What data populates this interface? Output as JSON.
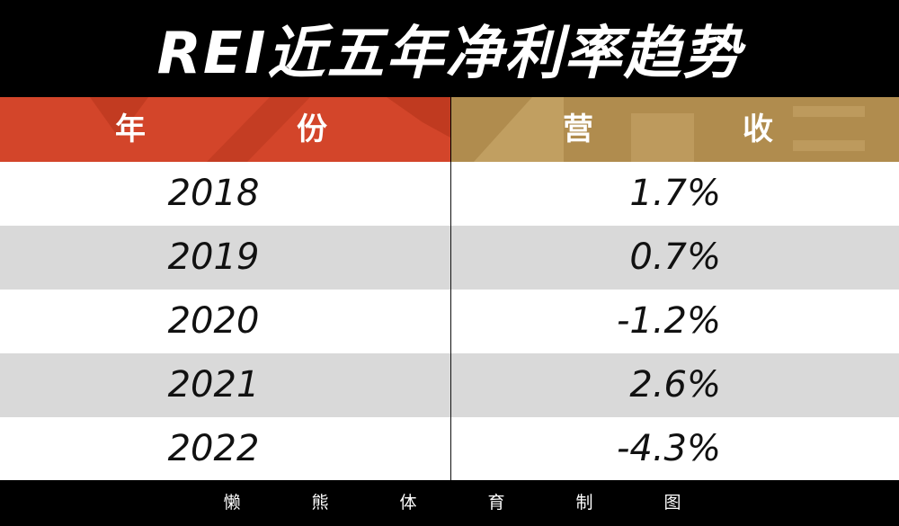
{
  "title": "REI近五年净利率趋势",
  "chart_data": {
    "type": "table",
    "title": "REI近五年净利率趋势",
    "headers": {
      "year": [
        "年",
        "份"
      ],
      "value": [
        "营",
        "收"
      ]
    },
    "rows": [
      {
        "year": "2018",
        "value": "1.7%"
      },
      {
        "year": "2019",
        "value": "0.7%"
      },
      {
        "year": "2020",
        "value": "-1.2%"
      },
      {
        "year": "2021",
        "value": "2.6%"
      },
      {
        "year": "2022",
        "value": "-4.3%"
      }
    ]
  },
  "footer": {
    "credit": [
      "懒",
      "熊",
      "体",
      "育",
      "制",
      "图"
    ]
  },
  "colors": {
    "title_bg": "#000000",
    "year_header": "#d3452a",
    "value_header": "#b08c4e",
    "row_light": "#ffffff",
    "row_dark": "#d9d9d9"
  }
}
